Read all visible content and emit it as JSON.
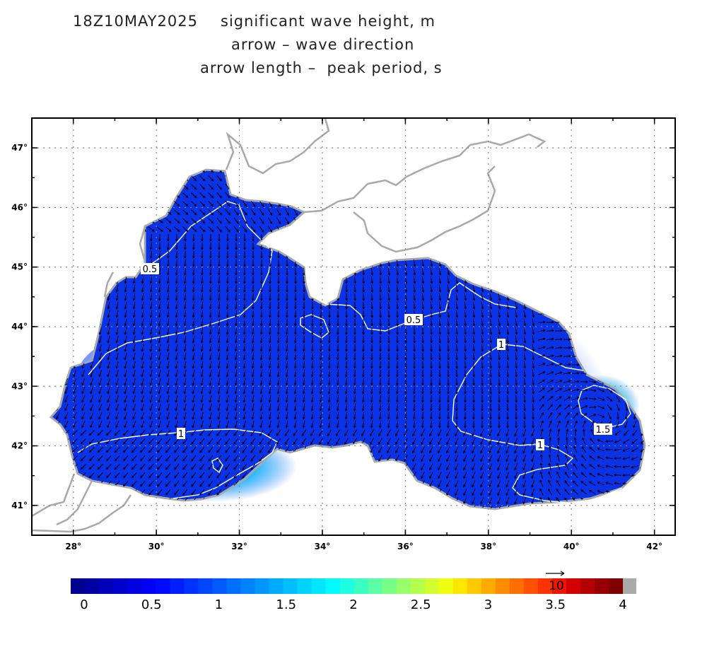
{
  "header": {
    "datetime": "18Z10MAY2025",
    "line1": "significant wave height, m",
    "line2": "arrow – wave direction",
    "line3": "arrow length –  peak period, s"
  },
  "map": {
    "lon_labels": [
      "28°",
      "30°",
      "32°",
      "34°",
      "36°",
      "38°",
      "40°",
      "42°"
    ],
    "lat_labels": [
      "47°",
      "46°",
      "45°",
      "44°",
      "43°",
      "42°",
      "41°"
    ],
    "lon_range": [
      27.0,
      42.5
    ],
    "lat_range": [
      40.5,
      47.5
    ],
    "contour_labels": [
      "0.5",
      "0.5",
      "1",
      "1",
      "1",
      "1.5"
    ],
    "colors": {
      "sea_base": "#0a32e6",
      "land_outline": "#a9a9a9",
      "contour": "#ffffff",
      "grid": "#808080"
    }
  },
  "colorbar": {
    "labels": [
      "0",
      "0.5",
      "1",
      "1.5",
      "2",
      "2.5",
      "3",
      "3.5",
      "4"
    ],
    "range": [
      0,
      4
    ],
    "overflow_color": "#aaaaaa",
    "colors": [
      "#00008f",
      "#0000a3",
      "#0000b8",
      "#0000cc",
      "#0000e0",
      "#0000f5",
      "#000aff",
      "#001eff",
      "#0032ff",
      "#0046ff",
      "#005aff",
      "#006eff",
      "#0082ff",
      "#0096ff",
      "#00aaff",
      "#00beff",
      "#00d2ff",
      "#00e6ff",
      "#00faff",
      "#1effe1",
      "#3cffc3",
      "#5affa5",
      "#78ff87",
      "#96ff69",
      "#b4ff4b",
      "#d2ff2d",
      "#f0ff0f",
      "#ffe600",
      "#ffc800",
      "#ffaa00",
      "#ff8c00",
      "#ff6e00",
      "#ff5000",
      "#ff3200",
      "#f01400",
      "#d20000",
      "#b40000",
      "#960000",
      "#800000"
    ],
    "reference_arrow_label": "10"
  }
}
